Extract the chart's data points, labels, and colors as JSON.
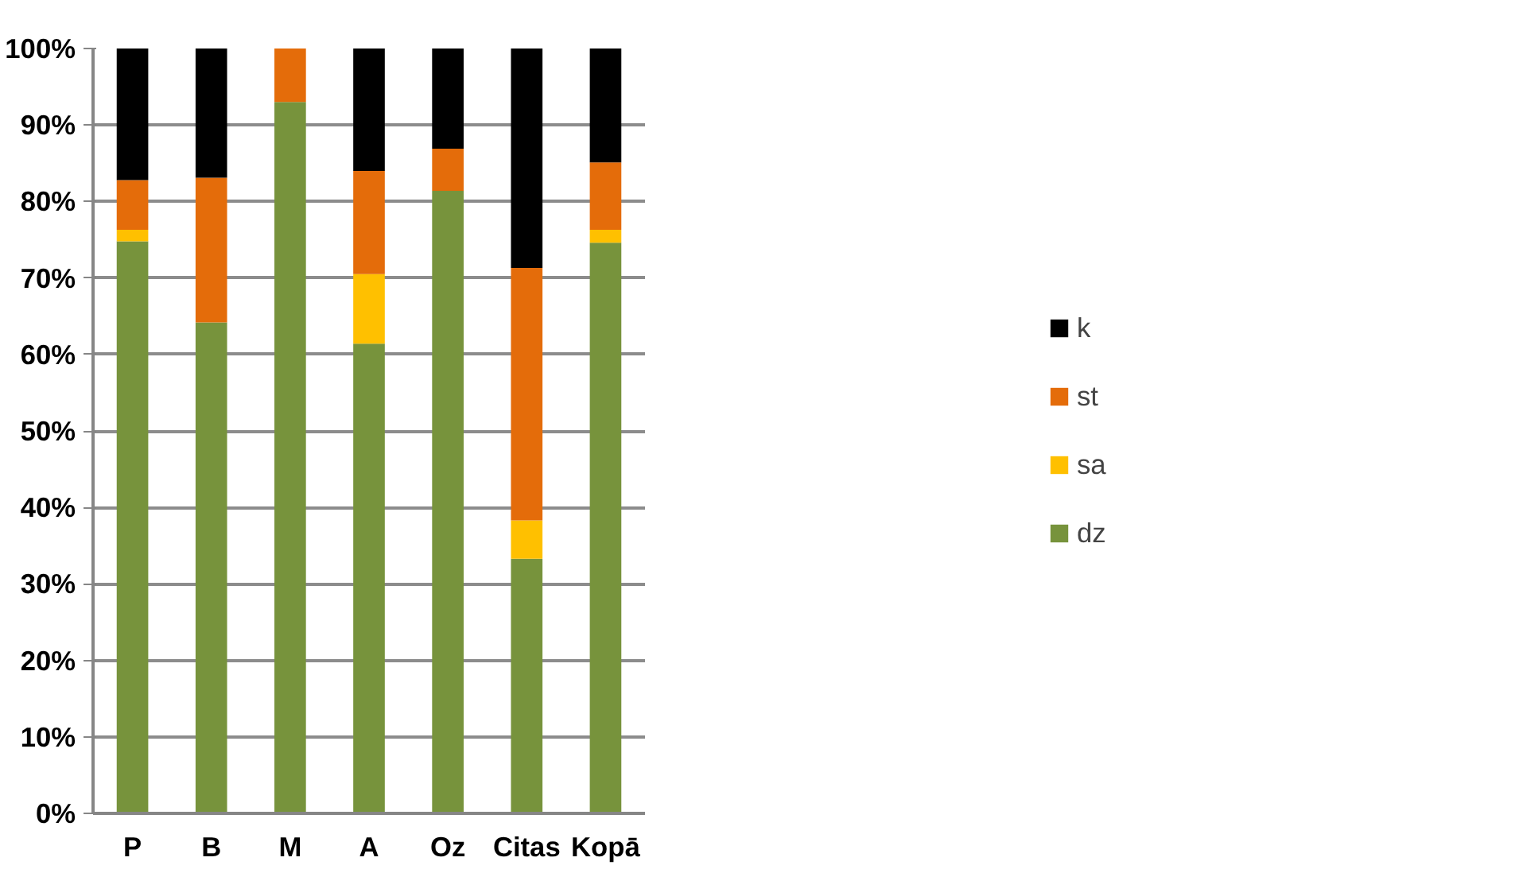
{
  "chart_data": {
    "type": "bar",
    "stacked": true,
    "categories": [
      "P",
      "B",
      "M",
      "A",
      "Oz",
      "Citas",
      "Kopā"
    ],
    "series": [
      {
        "name": "dz",
        "color": "#77933c",
        "values": [
          74.8,
          64.2,
          93.0,
          61.4,
          81.4,
          33.3,
          74.6
        ]
      },
      {
        "name": "sa",
        "color": "#ffc000",
        "values": [
          1.5,
          0,
          0,
          9.1,
          0,
          5.0,
          1.7
        ]
      },
      {
        "name": "st",
        "color": "#e46c0a",
        "values": [
          6.5,
          18.9,
          7.0,
          13.5,
          5.5,
          33.0,
          8.8
        ]
      },
      {
        "name": "k",
        "color": "#000000",
        "values": [
          17.2,
          16.9,
          0,
          16.0,
          13.1,
          28.7,
          14.9
        ]
      }
    ],
    "ylim": [
      0,
      100
    ],
    "yticks": [
      {
        "value": 0,
        "label": "0%"
      },
      {
        "value": 10,
        "label": "10%"
      },
      {
        "value": 20,
        "label": "20%"
      },
      {
        "value": 30,
        "label": "30%"
      },
      {
        "value": 40,
        "label": "40%"
      },
      {
        "value": 50,
        "label": "50%"
      },
      {
        "value": 60,
        "label": "60%"
      },
      {
        "value": 70,
        "label": "70%"
      },
      {
        "value": 80,
        "label": "80%"
      },
      {
        "value": 90,
        "label": "90%"
      },
      {
        "value": 100,
        "label": "100%"
      }
    ],
    "grid": "y",
    "legend": "right"
  }
}
